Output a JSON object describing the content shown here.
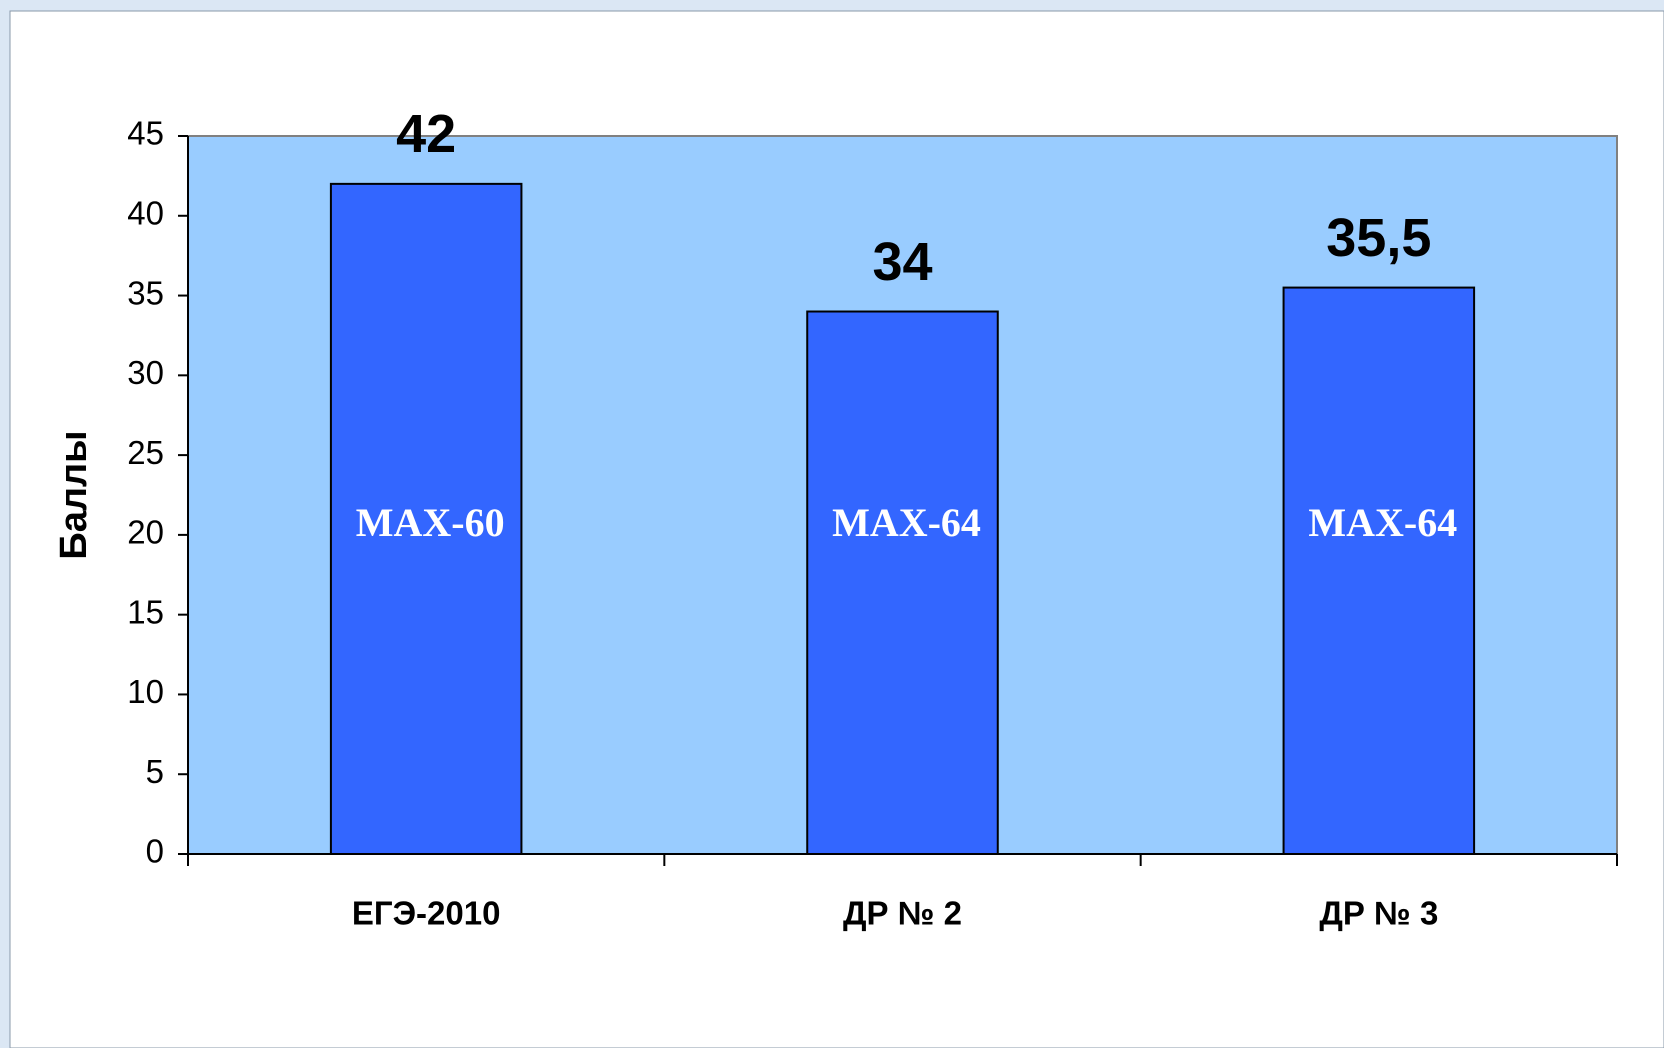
{
  "chart_data": {
    "type": "bar",
    "ylabel": "Баллы",
    "categories": [
      "ЕГЭ-2010",
      "ДР № 2",
      "ДР № 3"
    ],
    "values": [
      42,
      34,
      35.5
    ],
    "value_labels": [
      "42",
      "34",
      "35,5"
    ],
    "bar_annotations": [
      "MAX-60",
      "MAX-64",
      "MAX-64"
    ],
    "color": "#3366ff",
    "plot_background": "#99ccff",
    "ylim": [
      0,
      45
    ],
    "yticks": [
      0,
      5,
      10,
      15,
      20,
      25,
      30,
      35,
      40,
      45
    ],
    "grid": false
  }
}
